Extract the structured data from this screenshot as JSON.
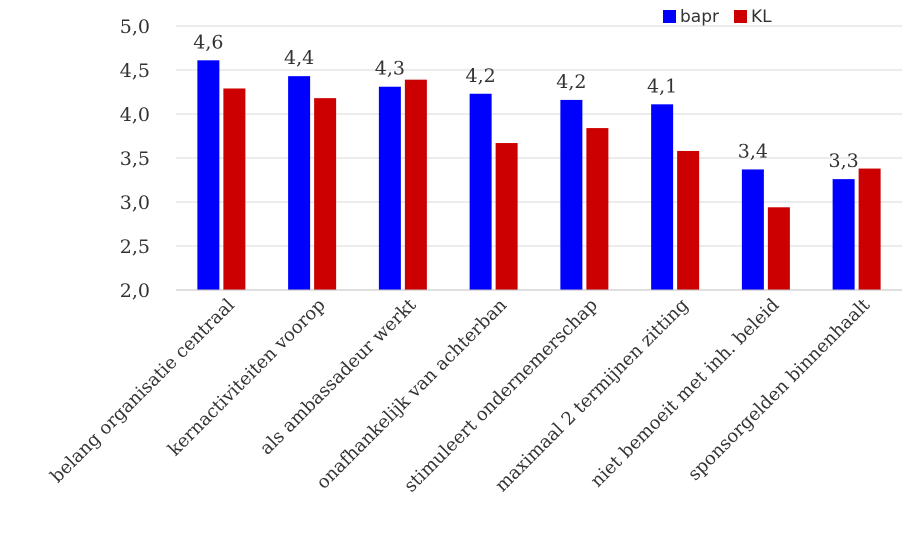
{
  "chart_data": {
    "type": "bar",
    "categories": [
      "belang organisatie centraal",
      "kernactiviteiten voorop",
      "als ambassadeur werkt",
      "onafhankelijk van achterban",
      "stimuleert ondernemerschap",
      "maximaal 2 termijnen zitting",
      "niet bemoeit met inh. beleid",
      "sponsorgelden binnenhaalt"
    ],
    "series": [
      {
        "name": "bapr",
        "color": "#0000ff",
        "values": [
          4.61,
          4.43,
          4.31,
          4.23,
          4.16,
          4.11,
          3.37,
          3.26
        ],
        "labels": [
          "4,6",
          "4,4",
          "4,3",
          "4,2",
          "4,2",
          "4,1",
          "3,4",
          "3,3"
        ]
      },
      {
        "name": "KL",
        "color": "#cc0000",
        "values": [
          4.29,
          4.18,
          4.39,
          3.67,
          3.84,
          3.58,
          2.94,
          3.38
        ]
      }
    ],
    "ylim": [
      2.0,
      5.0
    ],
    "yticks": [
      "2,0",
      "2,5",
      "3,0",
      "3,5",
      "4,0",
      "4,5",
      "5,0"
    ],
    "grid": true,
    "legend": "top-right"
  }
}
